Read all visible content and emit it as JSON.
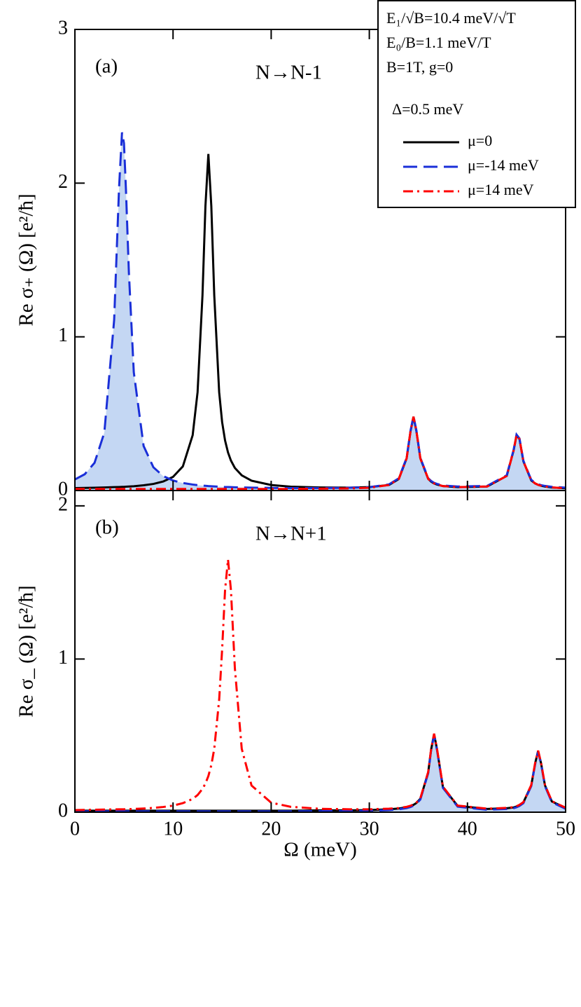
{
  "chart_data": [
    {
      "type": "line",
      "panel_label": "(a)",
      "annotation": "N→N-1",
      "y_label": "Re σ₊ (Ω) [e²/ħ]",
      "xlim": [
        0,
        50
      ],
      "xticks": [
        0,
        10,
        20,
        30,
        40,
        50
      ],
      "xtick_labels": false,
      "ylim": [
        0,
        3
      ],
      "yticks": [
        0,
        1,
        2,
        3
      ],
      "legend": "upper right",
      "legend_notes": [
        "E₁/√B=10.4 meV/√T",
        "E₀/B=1.1 meV/T",
        "B=1T,   g=0",
        "Δ=0.5 meV"
      ],
      "x": [
        0,
        1,
        2,
        3,
        4,
        4.5,
        4.8,
        5,
        5.2,
        5.5,
        6,
        7,
        8,
        9,
        10,
        11,
        12,
        12.5,
        13,
        13.3,
        13.6,
        13.9,
        14.2,
        14.7,
        15,
        15.3,
        15.6,
        15.9,
        16.3,
        17,
        18,
        20,
        22,
        25,
        28,
        30,
        32,
        33,
        33.8,
        34.2,
        34.5,
        34.8,
        35.2,
        36,
        36.3,
        36.6,
        36.9,
        37.5,
        39,
        42,
        44,
        44.7,
        45,
        45.3,
        45.7,
        46.5,
        46.9,
        47.2,
        47.5,
        47.9,
        48.6,
        50
      ],
      "series": [
        {
          "name": "μ=-14 meV",
          "color": "#1a2fd8",
          "fill_color": "#c4d7f3",
          "line_style": "dashed",
          "values": [
            0.072,
            0.106,
            0.18,
            0.377,
            1.11,
            1.97,
            2.33,
            2.26,
            1.96,
            1.42,
            0.77,
            0.29,
            0.151,
            0.094,
            0.065,
            0.049,
            0.039,
            0.035,
            0.032,
            0.031,
            0.029,
            0.028,
            0.027,
            0.025,
            0.024,
            0.023,
            0.023,
            0.022,
            0.021,
            0.02,
            0.019,
            0.017,
            0.016,
            0.016,
            0.018,
            0.022,
            0.04,
            0.079,
            0.213,
            0.39,
            0.484,
            0.39,
            0.213,
            0.08,
            0.062,
            0.05,
            0.043,
            0.033,
            0.026,
            0.03,
            0.099,
            0.264,
            0.364,
            0.339,
            0.194,
            0.07,
            0.05,
            0.041,
            0.035,
            0.03,
            0.024,
            0.019
          ]
        },
        {
          "name": "μ=0",
          "color": "#000000",
          "line_style": "solid",
          "values": [
            0.016,
            0.017,
            0.018,
            0.02,
            0.022,
            0.023,
            0.024,
            0.024,
            0.025,
            0.026,
            0.028,
            0.034,
            0.043,
            0.059,
            0.089,
            0.157,
            0.36,
            0.64,
            1.27,
            1.85,
            2.19,
            1.85,
            1.27,
            0.64,
            0.446,
            0.326,
            0.248,
            0.195,
            0.147,
            0.099,
            0.064,
            0.036,
            0.025,
            0.02,
            0.019,
            0.022,
            0.036,
            0.075,
            0.209,
            0.386,
            0.48,
            0.386,
            0.209,
            0.076,
            0.058,
            0.046,
            0.039,
            0.029,
            0.022,
            0.026,
            0.095,
            0.26,
            0.36,
            0.335,
            0.19,
            0.066,
            0.046,
            0.037,
            0.031,
            0.026,
            0.02,
            0.015
          ]
        },
        {
          "name": "μ=14 meV",
          "color": "#ff0000",
          "line_style": "dashdot",
          "values": [
            0.01,
            0.01,
            0.01,
            0.01,
            0.01,
            0.01,
            0.01,
            0.01,
            0.01,
            0.01,
            0.01,
            0.01,
            0.01,
            0.01,
            0.01,
            0.01,
            0.01,
            0.01,
            0.01,
            0.01,
            0.01,
            0.01,
            0.01,
            0.01,
            0.01,
            0.01,
            0.01,
            0.01,
            0.01,
            0.01,
            0.01,
            0.01,
            0.01,
            0.012,
            0.014,
            0.018,
            0.036,
            0.075,
            0.209,
            0.386,
            0.48,
            0.386,
            0.209,
            0.076,
            0.058,
            0.046,
            0.039,
            0.029,
            0.022,
            0.026,
            0.095,
            0.26,
            0.36,
            0.335,
            0.19,
            0.066,
            0.046,
            0.037,
            0.031,
            0.026,
            0.02,
            0.015
          ]
        }
      ]
    },
    {
      "type": "line",
      "panel_label": "(b)",
      "annotation": "N→N+1",
      "y_label": "Re σ_ (Ω) [e²/ħ]",
      "x_label": "Ω (meV)",
      "xlim": [
        0,
        50
      ],
      "xticks": [
        0,
        10,
        20,
        30,
        40,
        50
      ],
      "xtick_labels": true,
      "ylim": [
        0,
        2.1
      ],
      "yticks": [
        0,
        1,
        2
      ],
      "x": [
        0,
        1,
        2,
        3,
        4,
        4.5,
        4.8,
        5,
        5.2,
        5.5,
        6,
        7,
        8,
        9,
        10,
        11,
        12,
        12.5,
        13,
        13.3,
        13.6,
        13.9,
        14.2,
        14.7,
        15,
        15.3,
        15.6,
        15.9,
        16.3,
        17,
        18,
        20,
        22,
        25,
        28,
        30,
        32,
        33,
        33.8,
        34.2,
        34.5,
        34.8,
        35.2,
        36,
        36.3,
        36.6,
        36.9,
        37.5,
        39,
        42,
        44,
        44.7,
        45,
        45.3,
        45.7,
        46.5,
        46.9,
        47.2,
        47.5,
        47.9,
        48.6,
        50
      ],
      "series": [
        {
          "color": "#1a2fd8",
          "fill_color": "#c4d7f3",
          "line_style": "dashed",
          "values": [
            0.005,
            0.005,
            0.005,
            0.005,
            0.005,
            0.005,
            0.005,
            0.005,
            0.005,
            0.005,
            0.005,
            0.005,
            0.005,
            0.005,
            0.005,
            0.005,
            0.005,
            0.005,
            0.005,
            0.005,
            0.005,
            0.005,
            0.005,
            0.005,
            0.005,
            0.005,
            0.005,
            0.005,
            0.005,
            0.005,
            0.005,
            0.005,
            0.005,
            0.007,
            0.007,
            0.009,
            0.014,
            0.019,
            0.027,
            0.034,
            0.043,
            0.055,
            0.083,
            0.255,
            0.405,
            0.505,
            0.405,
            0.159,
            0.036,
            0.016,
            0.021,
            0.026,
            0.032,
            0.041,
            0.059,
            0.17,
            0.315,
            0.395,
            0.315,
            0.17,
            0.065,
            0.022
          ]
        },
        {
          "color": "#000000",
          "line_style": "solid",
          "values": [
            0.01,
            0.01,
            0.01,
            0.01,
            0.01,
            0.01,
            0.01,
            0.01,
            0.01,
            0.01,
            0.01,
            0.01,
            0.01,
            0.01,
            0.01,
            0.01,
            0.01,
            0.01,
            0.01,
            0.01,
            0.01,
            0.01,
            0.01,
            0.01,
            0.01,
            0.01,
            0.01,
            0.01,
            0.01,
            0.01,
            0.01,
            0.01,
            0.01,
            0.012,
            0.012,
            0.014,
            0.019,
            0.024,
            0.032,
            0.039,
            0.048,
            0.06,
            0.088,
            0.26,
            0.41,
            0.51,
            0.41,
            0.164,
            0.041,
            0.021,
            0.026,
            0.031,
            0.037,
            0.046,
            0.064,
            0.175,
            0.32,
            0.4,
            0.32,
            0.175,
            0.07,
            0.027
          ]
        },
        {
          "color": "#ff0000",
          "line_style": "dashdot",
          "values": [
            0.014,
            0.015,
            0.016,
            0.017,
            0.018,
            0.019,
            0.019,
            0.019,
            0.02,
            0.02,
            0.021,
            0.024,
            0.028,
            0.034,
            0.043,
            0.059,
            0.087,
            0.112,
            0.152,
            0.187,
            0.236,
            0.307,
            0.414,
            0.734,
            1.06,
            1.45,
            1.65,
            1.45,
            0.94,
            0.414,
            0.174,
            0.062,
            0.035,
            0.022,
            0.019,
            0.019,
            0.023,
            0.027,
            0.035,
            0.042,
            0.051,
            0.063,
            0.091,
            0.263,
            0.413,
            0.513,
            0.413,
            0.167,
            0.043,
            0.023,
            0.028,
            0.033,
            0.039,
            0.048,
            0.066,
            0.177,
            0.322,
            0.402,
            0.322,
            0.177,
            0.072,
            0.029
          ]
        }
      ]
    }
  ]
}
